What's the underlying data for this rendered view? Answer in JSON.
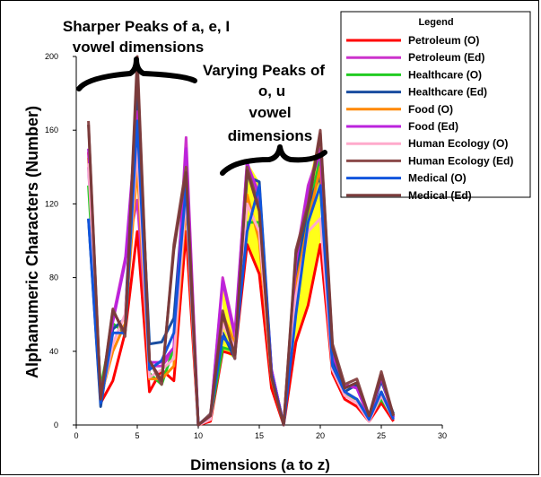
{
  "chart_data": {
    "type": "line",
    "xlabel": "Dimensions (a to z)",
    "ylabel": "Alphanumeric Characters (Number)",
    "xlim": [
      0,
      30
    ],
    "ylim": [
      0,
      200
    ],
    "xticks": [
      "0",
      "5",
      "10",
      "15",
      "20",
      "25",
      "30"
    ],
    "yticks": [
      "0",
      "40",
      "80",
      "120",
      "160",
      "200"
    ],
    "x": [
      1,
      2,
      3,
      4,
      5,
      6,
      7,
      8,
      9,
      10,
      11,
      12,
      13,
      14,
      15,
      16,
      17,
      18,
      19,
      20,
      21,
      22,
      23,
      24,
      25,
      26
    ],
    "legend_title": "Legend",
    "legend_position": "top-right",
    "annotations": [
      {
        "line1": "Sharper Peaks of a, e, I",
        "line2": "vowel dimensions"
      },
      {
        "line1": "Varying Peaks of",
        "line2": "o, u",
        "line3": "vowel",
        "line4": "dimensions"
      }
    ],
    "fill_between_color": "#ffff00",
    "series": [
      {
        "name": "Petroleum (O)",
        "color": "#ff0000",
        "values": [
          148,
          12,
          24,
          50,
          105,
          18,
          30,
          24,
          105,
          0,
          2,
          40,
          38,
          98,
          82,
          20,
          0,
          45,
          65,
          98,
          28,
          14,
          10,
          2,
          12,
          2
        ]
      },
      {
        "name": "Petroleum (Ed)",
        "color": "#cc33cc",
        "values": [
          140,
          14,
          58,
          90,
          122,
          32,
          32,
          40,
          156,
          0,
          4,
          80,
          50,
          143,
          120,
          30,
          0,
          90,
          130,
          150,
          36,
          22,
          20,
          4,
          28,
          4
        ]
      },
      {
        "name": "Healthcare (O)",
        "color": "#22cc22",
        "values": [
          130,
          20,
          55,
          50,
          155,
          28,
          22,
          42,
          130,
          0,
          4,
          42,
          40,
          110,
          110,
          28,
          0,
          70,
          115,
          145,
          30,
          16,
          14,
          4,
          14,
          4
        ]
      },
      {
        "name": "Healthcare (Ed)",
        "color": "#1a4da0",
        "values": [
          112,
          10,
          52,
          58,
          180,
          44,
          45,
          58,
          140,
          0,
          6,
          50,
          36,
          135,
          132,
          30,
          0,
          80,
          120,
          135,
          35,
          18,
          22,
          4,
          24,
          6
        ]
      },
      {
        "name": "Food (O)",
        "color": "#ff8800",
        "values": [
          145,
          15,
          40,
          55,
          140,
          25,
          25,
          32,
          120,
          0,
          3,
          60,
          44,
          125,
          100,
          25,
          0,
          75,
          110,
          140,
          30,
          18,
          14,
          4,
          18,
          4
        ]
      },
      {
        "name": "Food (Ed)",
        "color": "#bb22dd",
        "values": [
          150,
          16,
          56,
          88,
          170,
          34,
          34,
          42,
          150,
          0,
          4,
          78,
          48,
          142,
          125,
          30,
          0,
          88,
          128,
          148,
          38,
          22,
          20,
          4,
          26,
          4
        ]
      },
      {
        "name": "Human Ecology (O)",
        "color": "#ffaacc",
        "values": [
          142,
          14,
          44,
          60,
          150,
          26,
          30,
          36,
          125,
          0,
          3,
          55,
          42,
          120,
          105,
          26,
          0,
          70,
          105,
          112,
          30,
          16,
          12,
          2,
          16,
          3
        ]
      },
      {
        "name": "Human Ecology (Ed)",
        "color": "#8b4a4a",
        "values": [
          165,
          14,
          63,
          48,
          200,
          35,
          22,
          98,
          140,
          0,
          6,
          62,
          36,
          140,
          118,
          26,
          0,
          95,
          120,
          160,
          44,
          22,
          25,
          5,
          29,
          5
        ]
      },
      {
        "name": "Medical (O)",
        "color": "#1155dd",
        "values": [
          112,
          12,
          50,
          50,
          165,
          30,
          35,
          50,
          130,
          0,
          5,
          48,
          40,
          105,
          130,
          28,
          0,
          60,
          110,
          130,
          32,
          18,
          14,
          3,
          18,
          3
        ]
      },
      {
        "name": "Medical (Ed)",
        "color": "#7a3b3b",
        "values": [
          163,
          14,
          62,
          50,
          195,
          35,
          24,
          95,
          137,
          0,
          5,
          60,
          38,
          138,
          116,
          26,
          0,
          93,
          118,
          158,
          42,
          20,
          23,
          5,
          27,
          5
        ]
      }
    ]
  }
}
